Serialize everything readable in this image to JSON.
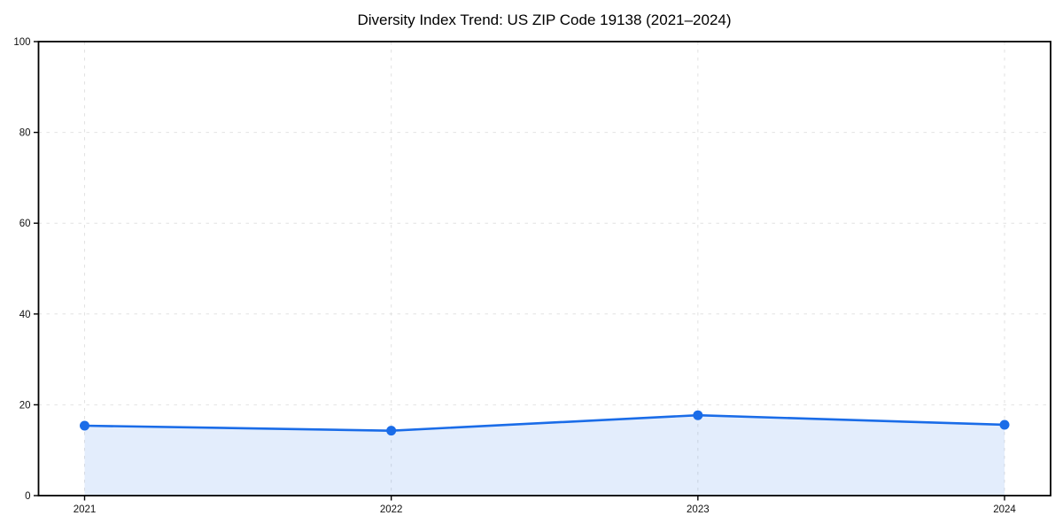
{
  "chart_data": {
    "type": "area",
    "title": "Diversity Index Trend: US ZIP Code 19138 (2021–2024)",
    "series_name": "Diversity Index",
    "categories": [
      "2021",
      "2022",
      "2023",
      "2024"
    ],
    "values": [
      15.4,
      14.3,
      17.7,
      15.6
    ],
    "xlabel": "",
    "ylabel": "",
    "ylim": [
      0,
      100
    ],
    "yticks": [
      0,
      20,
      40,
      60,
      80,
      100
    ],
    "grid": true,
    "grid_style": "dashed",
    "legend_position": "none",
    "colors": {
      "line": "#1a6ce8",
      "marker": "#1a6ce8",
      "fill": "rgba(26,108,232,0.12)",
      "gridline": "#e2e2e2",
      "spine": "#000000",
      "tick_label": "#111111"
    }
  }
}
